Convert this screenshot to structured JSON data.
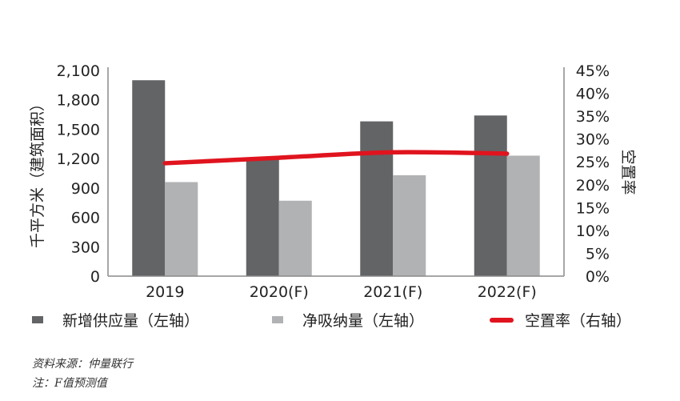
{
  "chart_data": {
    "type": "bar",
    "categories": [
      "2019",
      "2020(F)",
      "2021(F)",
      "2022(F)"
    ],
    "series": [
      {
        "name": "新增供应量（左轴）",
        "axis": "left",
        "values": [
          2000,
          1210,
          1580,
          1640
        ],
        "color": "#636466"
      },
      {
        "name": "净吸纳量（左轴）",
        "axis": "left",
        "values": [
          960,
          770,
          1030,
          1230
        ],
        "color": "#b1b2b4"
      },
      {
        "name": "空置率（右轴）",
        "axis": "right",
        "type": "line",
        "values": [
          24.7,
          25.9,
          27.1,
          26.8
        ],
        "color": "#e0141e"
      }
    ],
    "ylabel": "千平方米（建筑面积）",
    "y2label": "空置率",
    "ylim": [
      0,
      2100
    ],
    "y2lim": [
      0,
      45
    ],
    "yticks": [
      "0",
      "300",
      "600",
      "900",
      "1,200",
      "1,500",
      "1,800",
      "2,100"
    ],
    "y2ticks": [
      "0%",
      "5%",
      "10%",
      "15%",
      "20%",
      "25%",
      "30%",
      "35%",
      "40%",
      "45%"
    ],
    "grid": false,
    "legend_position": "bottom"
  },
  "legend": [
    {
      "label": "新增供应量（左轴）",
      "color": "#636466"
    },
    {
      "label": "净吸纳量（左轴）",
      "color": "#b1b2b4"
    },
    {
      "label": "空置率（右轴）",
      "color": "#e0141e"
    }
  ],
  "notes": {
    "source": "资料来源：仲量联行",
    "note": "注：F值预测值"
  }
}
